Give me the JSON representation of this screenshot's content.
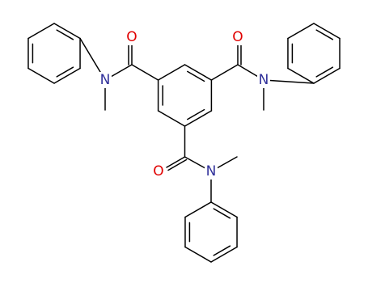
{
  "atoms": [
    {
      "label": "O"
    },
    {
      "label": "N"
    },
    {
      "label": "O"
    },
    {
      "label": "N"
    },
    {
      "label": "O"
    },
    {
      "label": "N"
    }
  ]
}
